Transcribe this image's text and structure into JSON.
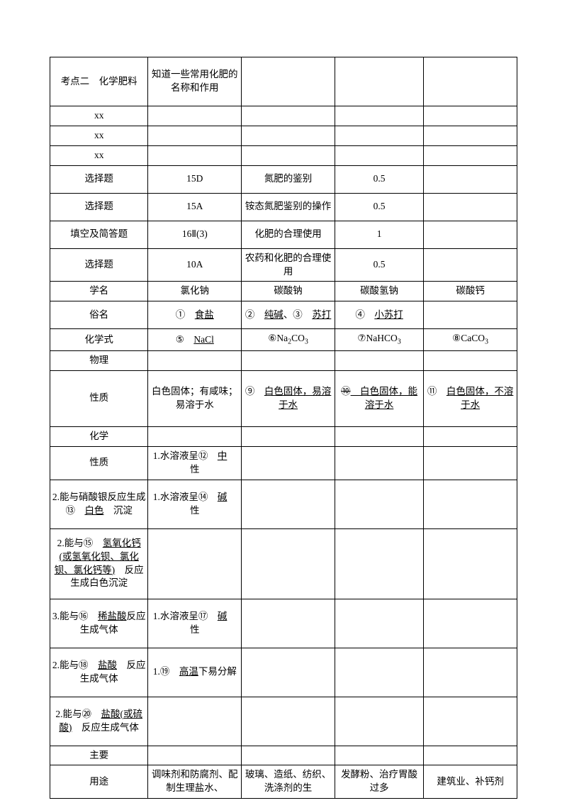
{
  "r1": {
    "c1": "考点二　化学肥料",
    "c2": "知道一些常用化肥的名称和作用"
  },
  "r2": {
    "c1": "xx"
  },
  "r3": {
    "c1": "xx"
  },
  "r4": {
    "c1": "xx"
  },
  "r5": {
    "c1": "选择题",
    "c2": "15D",
    "c3": "氮肥的鉴别",
    "c4": "0.5"
  },
  "r6": {
    "c1": "选择题",
    "c2": "15A",
    "c3": "铵态氮肥鉴别的操作",
    "c4": "0.5"
  },
  "r7": {
    "c1": "填空及简答题",
    "c2": "16Ⅱ(3)",
    "c3": "化肥的合理使用",
    "c4": "1"
  },
  "r8": {
    "c1": "选择题",
    "c2": "10A",
    "c3": "农药和化肥的合理使用",
    "c4": "0.5"
  },
  "h1": {
    "c1": "学名",
    "c2": "氯化钠",
    "c3": "碳酸钠",
    "c4": "碳酸氢钠",
    "c5": "碳酸钙"
  },
  "h2": {
    "c1": "俗名",
    "c2a": "①　",
    "c2b": "食盐",
    "c3a": "②　",
    "c3b": "纯碱",
    "c3c": "、③　",
    "c3d": "苏打",
    "c4a": "④　",
    "c4b": "小苏打"
  },
  "h3": {
    "c1": "化学式",
    "c2a": "⑤　",
    "c2b": "NaCl",
    "c3a": "⑥",
    "c3b": "Na",
    "c3s1": "2",
    "c3c": "CO",
    "c3s2": "3",
    "c4a": "⑦",
    "c4b": "NaHCO",
    "c4s": "3",
    "c5a": "⑧",
    "c5b": "CaCO",
    "c5s": "3"
  },
  "h4": {
    "c1": "物理"
  },
  "h5": {
    "c1": "性质",
    "c2": "白色固体；有咸味；易溶于水",
    "c3a": "⑨　",
    "c3b": "白色固体，易溶于水",
    "c4a": "⑩",
    "c4b": "　白色固体，能溶于水",
    "c5a": "⑪　",
    "c5b": "白色固体，不溶于水"
  },
  "h6": {
    "c1": "化学"
  },
  "h7": {
    "c1": "性质",
    "c2a": "1.水溶液呈⑫　",
    "c2b": "中",
    "c2c": "　性"
  },
  "h8": {
    "c1a": "2.能与硝酸银反应生成⑬　",
    "c1b": "白色",
    "c1c": "　沉淀",
    "c2a": "1.水溶液呈⑭　",
    "c2b": "碱",
    "c2c": "　性"
  },
  "h9": {
    "c1a": "2.能与⑮　",
    "c1b": "氢氧化钙(或氢氧化钡、氯化钡、氯化钙等)",
    "c1c": "　反应生成白色沉淀"
  },
  "h10": {
    "c1a": "3.能与⑯　",
    "c1b": "稀盐酸",
    "c1c": "反应生成气体",
    "c2a": "1.水溶液呈⑰　",
    "c2b": "碱",
    "c2c": "　性"
  },
  "h11": {
    "c1a": "2.能与⑱　",
    "c1b": "盐酸",
    "c1c": "　反应生成气体",
    "c2a": "1.⑲　",
    "c2b": "高温",
    "c2c": "下易分解"
  },
  "h12": {
    "c1a": "2.能与⑳　",
    "c1b": "盐酸(或硫酸)",
    "c1c": "　反应生成气体"
  },
  "h13": {
    "c1": "主要"
  },
  "h14": {
    "c1": "用途",
    "c2": "调味剂和防腐剂、配制生理盐水、",
    "c3": "玻璃、造纸、纺织、洗涤剂的生",
    "c4": "发酵粉、治疗胃酸过多",
    "c5": "建筑业、补钙剂"
  }
}
